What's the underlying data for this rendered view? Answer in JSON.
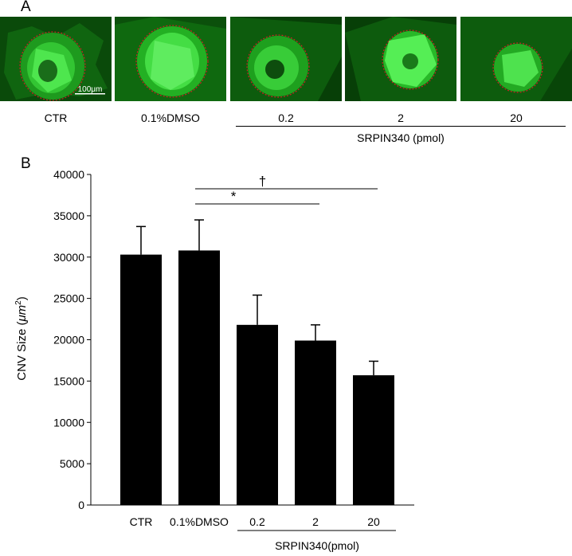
{
  "panel_a": {
    "letter": "A",
    "images": [
      {
        "label": "CTR",
        "scale_bar": "100μm"
      },
      {
        "label": "0.1%DMSO"
      },
      {
        "label": "0.2"
      },
      {
        "label": "2"
      },
      {
        "label": "20"
      }
    ],
    "group_label": "SRPIN340 (pmol)",
    "colors": {
      "vessel": "#22dd22",
      "background": "#053a05",
      "outline": "#cc2222"
    }
  },
  "panel_b": {
    "letter": "B",
    "group_label": "SRPIN340(pmol)",
    "ylabel": {
      "prefix": "CNV Size (",
      "unit": "μm",
      "sup": "2",
      "suffix": ")"
    },
    "significance": [
      {
        "symbol": "†",
        "from": "0.1%DMSO",
        "to": "20"
      },
      {
        "symbol": "*",
        "from": "0.1%DMSO",
        "to": "2"
      }
    ]
  },
  "chart_data": {
    "type": "bar",
    "categories": [
      "CTR",
      "0.1%DMSO",
      "0.2",
      "2",
      "20"
    ],
    "values": [
      30300,
      30800,
      21800,
      19900,
      15700
    ],
    "errors": [
      3400,
      3700,
      3600,
      1900,
      1700
    ],
    "ylim": [
      0,
      40000
    ],
    "yticks": [
      "0",
      "5000",
      "10000",
      "15000",
      "20000",
      "25000",
      "30000",
      "35000",
      "40000"
    ],
    "ytick_values": [
      0,
      5000,
      10000,
      15000,
      20000,
      25000,
      30000,
      35000,
      40000
    ],
    "grid": false,
    "bar_color": "#000000"
  }
}
